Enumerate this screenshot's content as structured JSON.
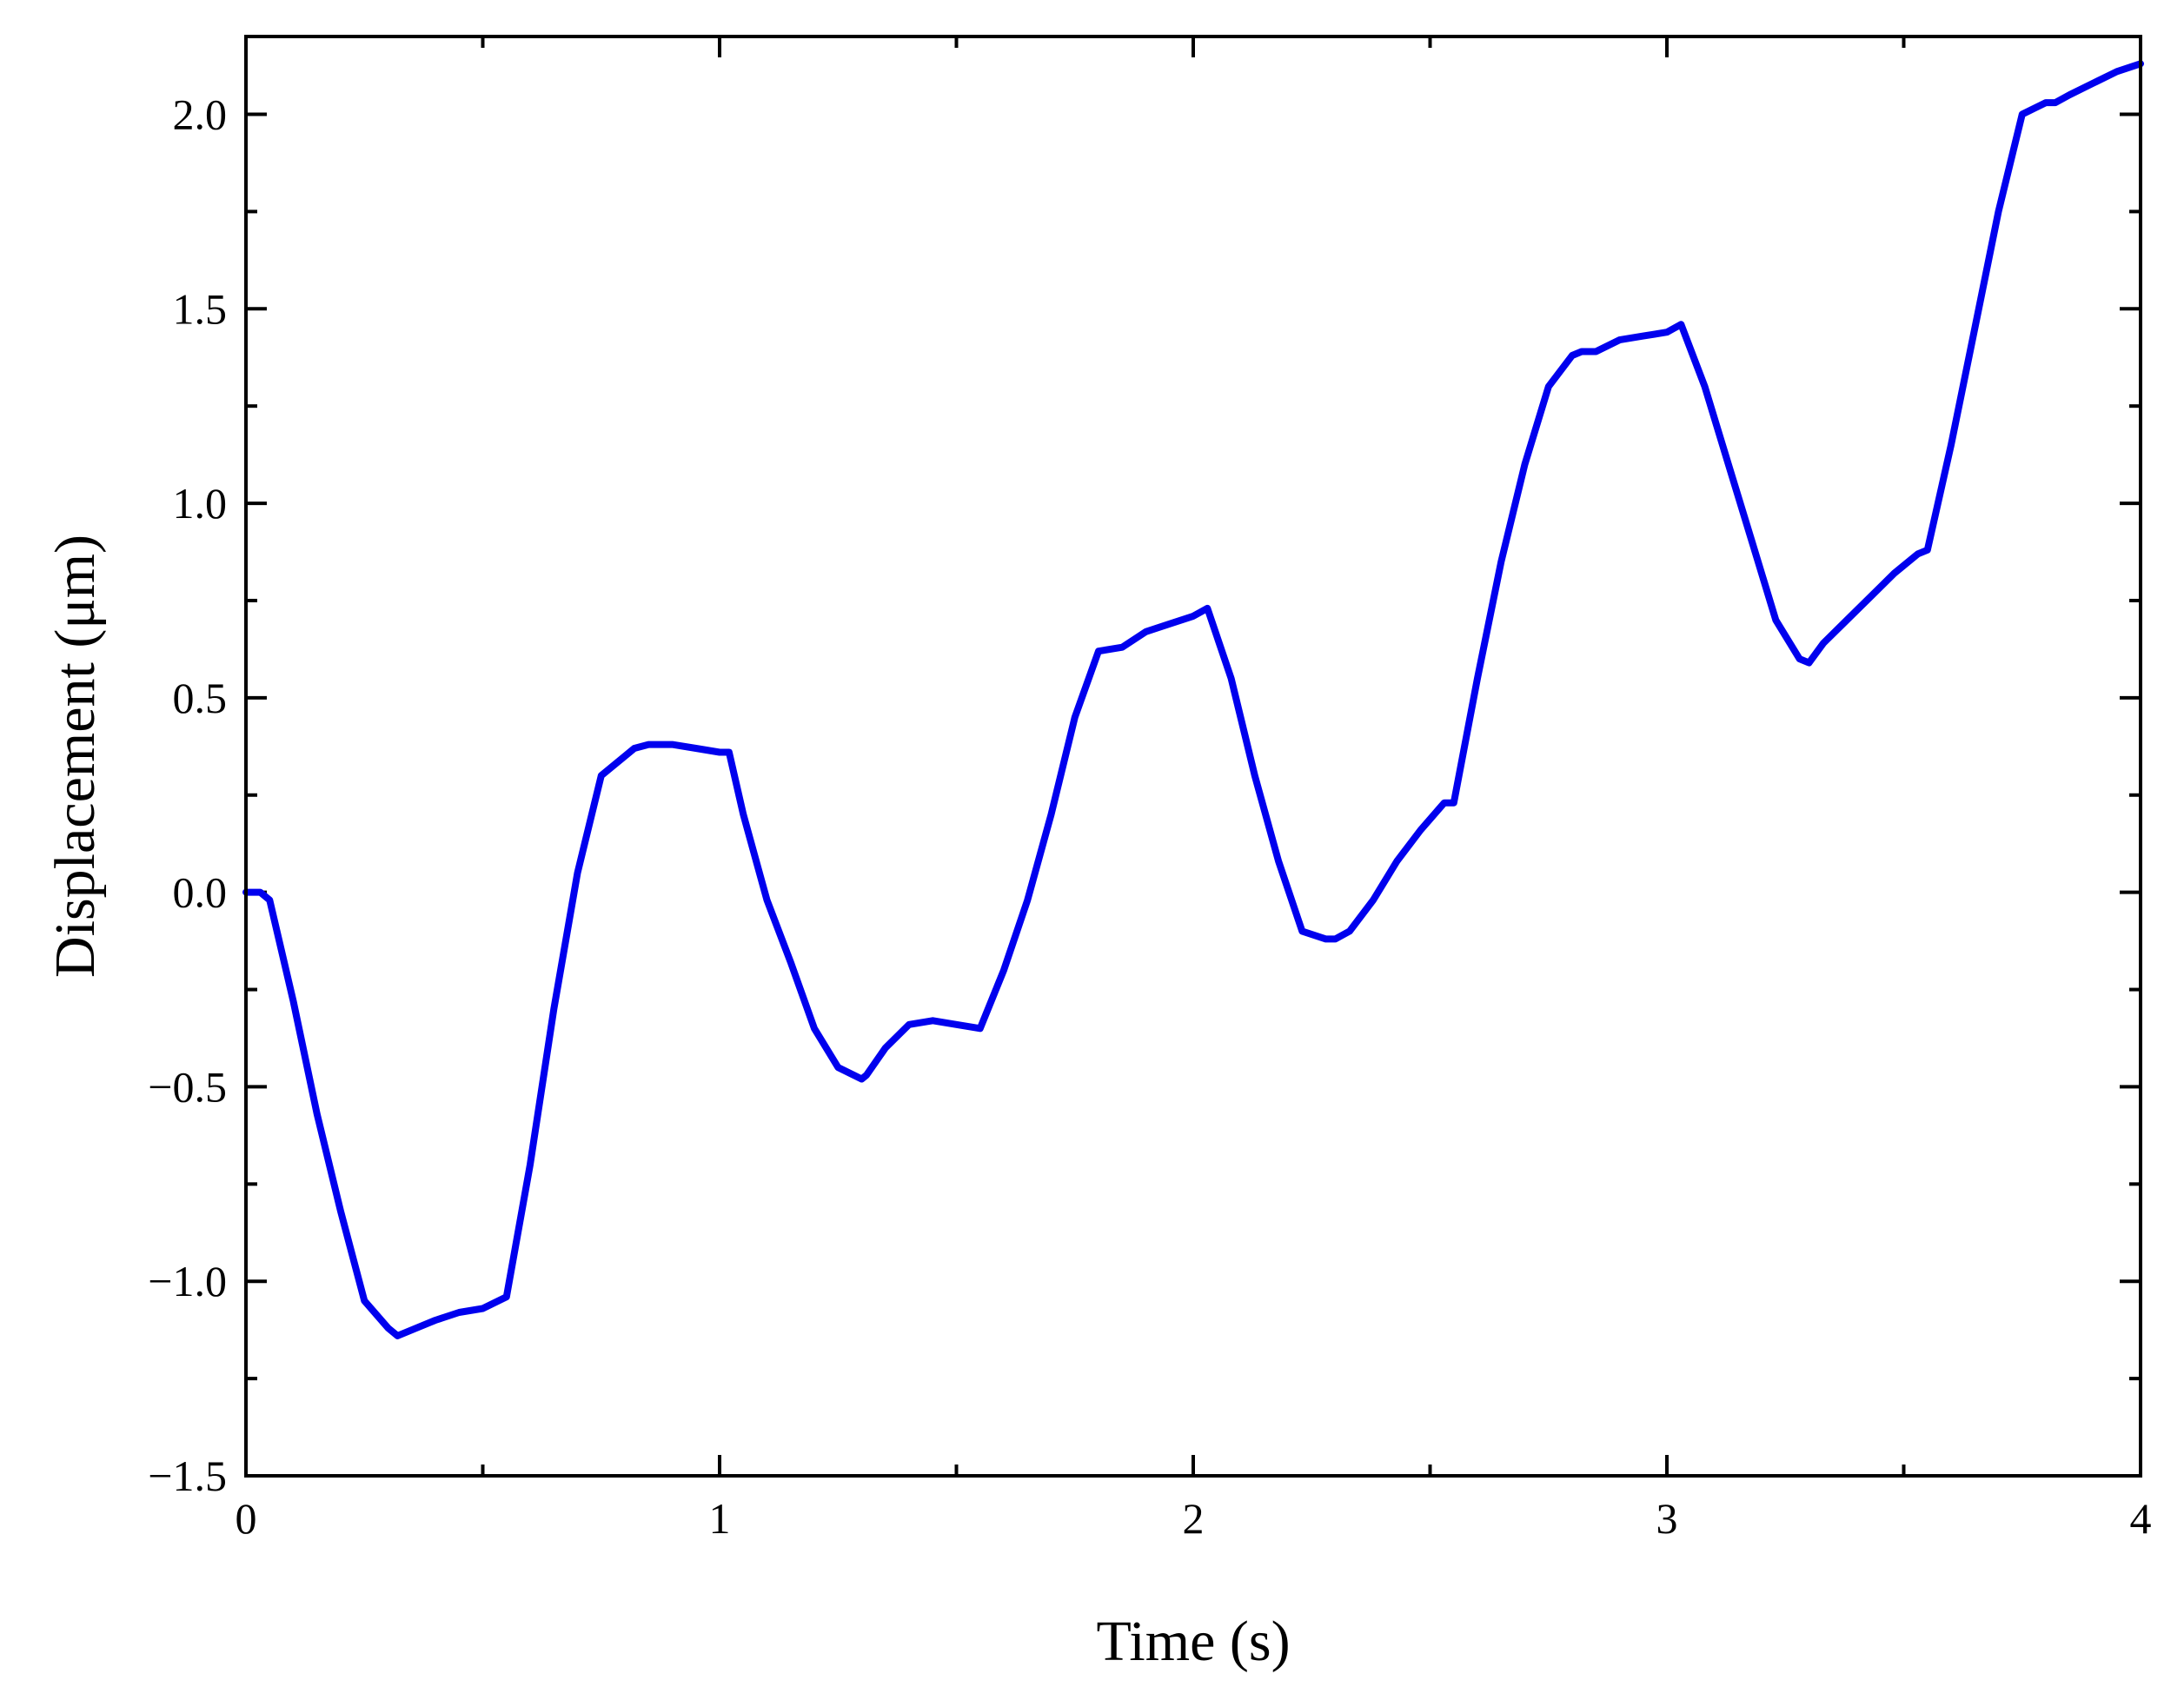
{
  "chart_data": {
    "type": "line",
    "title": "",
    "xlabel": "Time (s)",
    "ylabel": "Displacement (μm)",
    "xlim": [
      0,
      4
    ],
    "ylim": [
      -1.5,
      2.2
    ],
    "x_ticks": [
      0,
      1,
      2,
      3,
      4
    ],
    "x_tick_labels": [
      "0",
      "1",
      "2",
      "3",
      "4"
    ],
    "y_ticks": [
      -1.5,
      -1.0,
      -0.5,
      0.0,
      0.5,
      1.0,
      1.5,
      2.0
    ],
    "y_tick_labels": [
      "−1.5",
      "−1.0",
      "−0.5",
      "0.0",
      "0.5",
      "1.0",
      "1.5",
      "2.0"
    ],
    "grid": false,
    "legend": "none",
    "series": [
      {
        "color": "#0000ee",
        "x": [
          0,
          0.03,
          0.05,
          0.1,
          0.15,
          0.2,
          0.25,
          0.3,
          0.32,
          0.36,
          0.4,
          0.45,
          0.5,
          0.55,
          0.6,
          0.65,
          0.7,
          0.75,
          0.8,
          0.82,
          0.85,
          0.9,
          0.95,
          1.0,
          1.02,
          1.05,
          1.1,
          1.15,
          1.2,
          1.25,
          1.3,
          1.31,
          1.35,
          1.4,
          1.45,
          1.5,
          1.55,
          1.6,
          1.65,
          1.7,
          1.75,
          1.8,
          1.85,
          1.9,
          1.95,
          2.0,
          2.03,
          2.08,
          2.13,
          2.18,
          2.23,
          2.28,
          2.3,
          2.33,
          2.38,
          2.43,
          2.48,
          2.53,
          2.55,
          2.6,
          2.65,
          2.7,
          2.75,
          2.8,
          2.82,
          2.85,
          2.9,
          2.95,
          3.0,
          3.03,
          3.08,
          3.13,
          3.18,
          3.23,
          3.28,
          3.3,
          3.33,
          3.38,
          3.43,
          3.48,
          3.53,
          3.55,
          3.6,
          3.65,
          3.7,
          3.75,
          3.8,
          3.82,
          3.85,
          3.9,
          3.95,
          4.0
        ],
        "y": [
          0.0,
          0.0,
          -0.02,
          -0.28,
          -0.57,
          -0.82,
          -1.05,
          -1.12,
          -1.14,
          -1.12,
          -1.1,
          -1.08,
          -1.07,
          -1.04,
          -0.7,
          -0.3,
          0.05,
          0.3,
          0.35,
          0.37,
          0.38,
          0.38,
          0.37,
          0.36,
          0.36,
          0.2,
          -0.02,
          -0.18,
          -0.35,
          -0.45,
          -0.48,
          -0.47,
          -0.4,
          -0.34,
          -0.33,
          -0.34,
          -0.35,
          -0.2,
          -0.02,
          0.2,
          0.45,
          0.62,
          0.63,
          0.67,
          0.69,
          0.71,
          0.73,
          0.55,
          0.3,
          0.08,
          -0.1,
          -0.12,
          -0.12,
          -0.1,
          -0.02,
          0.08,
          0.16,
          0.23,
          0.23,
          0.55,
          0.85,
          1.1,
          1.3,
          1.38,
          1.39,
          1.39,
          1.42,
          1.43,
          1.44,
          1.46,
          1.3,
          1.1,
          0.9,
          0.7,
          0.6,
          0.59,
          0.64,
          0.7,
          0.76,
          0.82,
          0.87,
          0.88,
          1.15,
          1.45,
          1.75,
          2.0,
          2.03,
          2.03,
          2.05,
          2.08,
          2.11,
          2.13
        ]
      }
    ]
  }
}
